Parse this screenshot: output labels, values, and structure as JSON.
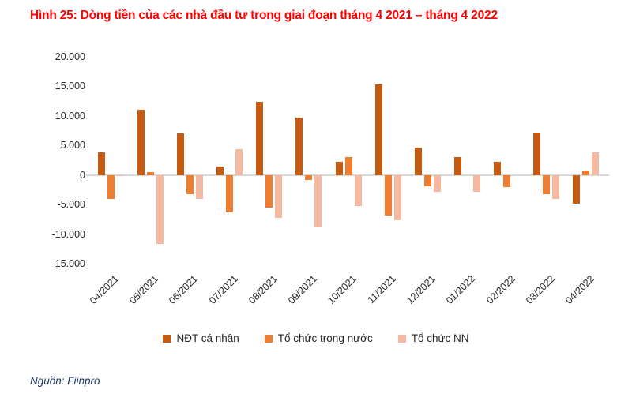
{
  "title": "Hình 25: Dòng tiền của các nhà đầu tư trong giai đoạn tháng 4 2021 – tháng 4 2022",
  "source": "Nguồn: Fiinpro",
  "colors": {
    "title_red": "#FF0000",
    "axis_text": "#262626",
    "zero_line": "#D9D9D9",
    "source_text": "#1F3864"
  },
  "chart_data": {
    "type": "bar",
    "title": "Hình 25: Dòng tiền của các nhà đầu tư trong giai đoạn tháng 4 2021 – tháng 4 2022",
    "categories": [
      "04/2021",
      "05/2021",
      "06/2021",
      "07/2021",
      "08/2021",
      "09/2021",
      "10/2021",
      "11/2021",
      "12/2021",
      "01/2022",
      "02/2022",
      "03/2022",
      "04/2022"
    ],
    "series": [
      {
        "name": "NĐT cá nhân",
        "color": "#C55A11",
        "values": [
          3800,
          11100,
          7100,
          1400,
          12400,
          9700,
          2200,
          15300,
          4600,
          3000,
          2200,
          7200,
          -4800
        ]
      },
      {
        "name": "Tổ chức trong nước",
        "color": "#ED7D31",
        "values": [
          -4000,
          500,
          -3300,
          -6300,
          -5500,
          -800,
          3000,
          -6800,
          -1900,
          0,
          -2000,
          -3300,
          800
        ]
      },
      {
        "name": "Tổ chức NN",
        "color": "#F4B9A0",
        "values": [
          -100,
          -11600,
          -4100,
          4400,
          -7300,
          -8800,
          -5300,
          -7700,
          -2900,
          -2900,
          0,
          -4000,
          3800
        ]
      }
    ],
    "ylim": [
      -15000,
      20000
    ],
    "y_tick_labels": [
      "20.000",
      "15.000",
      "10.000",
      "5.000",
      "0",
      "-5.000",
      "-10.000",
      "-15.000"
    ],
    "y_tick_values": [
      20000,
      15000,
      10000,
      5000,
      0,
      -5000,
      -10000,
      -15000
    ],
    "grid": false,
    "legend_position": "bottom",
    "xlabel": "",
    "ylabel": ""
  }
}
